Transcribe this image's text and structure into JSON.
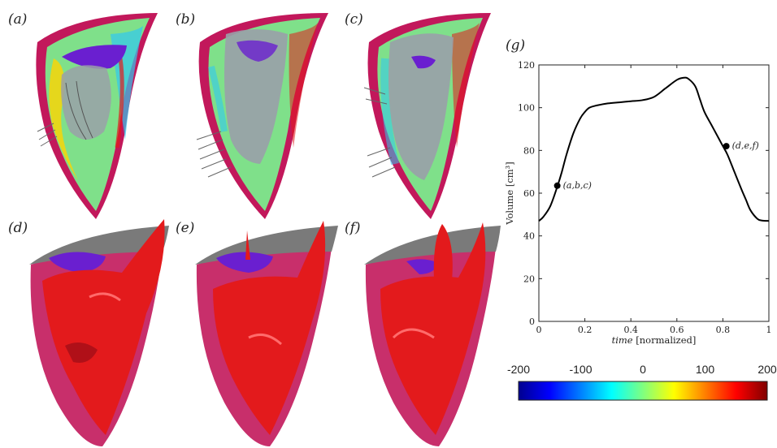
{
  "panels": {
    "a": "(a)",
    "b": "(b)",
    "c": "(c)",
    "d": "(d)",
    "e": "(e)",
    "f": "(f)",
    "g": "(g)"
  },
  "colors": {
    "myocardium": "#c2185b",
    "inner_wall": "#e91e8c",
    "isosurface": "#e31a1c",
    "valve": "#6a1fd0",
    "annulus_plane": "#7a7a7a",
    "field_fill": "#7fe08a",
    "curve": "#000000"
  },
  "chart_data": {
    "type": "line",
    "title": "(g)",
    "xlabel": "time [normalized]",
    "xlabel_italic": "time",
    "xlabel_rest": " [normalized]",
    "ylabel": "Volume [cm³]",
    "xlim": [
      0,
      1
    ],
    "ylim": [
      0,
      120
    ],
    "xticks": [
      0,
      0.2,
      0.4,
      0.6,
      0.8,
      1
    ],
    "xtick_labels": [
      "0",
      "0.2",
      "0.4",
      "0.6",
      "0.8",
      "1"
    ],
    "yticks": [
      0,
      20,
      40,
      60,
      80,
      100,
      120
    ],
    "grid": false,
    "series": [
      {
        "x": [
          0,
          0.02,
          0.05,
          0.08,
          0.1,
          0.12,
          0.15,
          0.18,
          0.2,
          0.22,
          0.25,
          0.3,
          0.35,
          0.4,
          0.45,
          0.5,
          0.55,
          0.6,
          0.63,
          0.65,
          0.68,
          0.7,
          0.72,
          0.75,
          0.78,
          0.8,
          0.82,
          0.85,
          0.88,
          0.9,
          0.92,
          0.95,
          0.97,
          1.0
        ],
        "y": [
          47,
          49,
          54,
          63,
          70,
          78,
          88,
          95,
          98,
          100,
          101,
          102,
          102.5,
          103,
          103.5,
          105,
          109,
          113,
          114,
          113.5,
          110,
          104,
          98,
          92,
          86,
          82,
          78,
          70,
          62,
          57,
          52,
          48,
          47.2,
          47
        ]
      }
    ],
    "annotations": [
      {
        "label": "(a,b,c)",
        "x": 0.08,
        "y": 63.5
      },
      {
        "label": "(d,e,f)",
        "x": 0.815,
        "y": 82
      }
    ],
    "colorbar": {
      "min": -200,
      "max": 200,
      "ticks": [
        -200,
        -100,
        0,
        100,
        200
      ],
      "tick_labels": [
        "-200",
        "-100",
        "0",
        "100",
        "200"
      ],
      "colormap": "jet"
    }
  }
}
